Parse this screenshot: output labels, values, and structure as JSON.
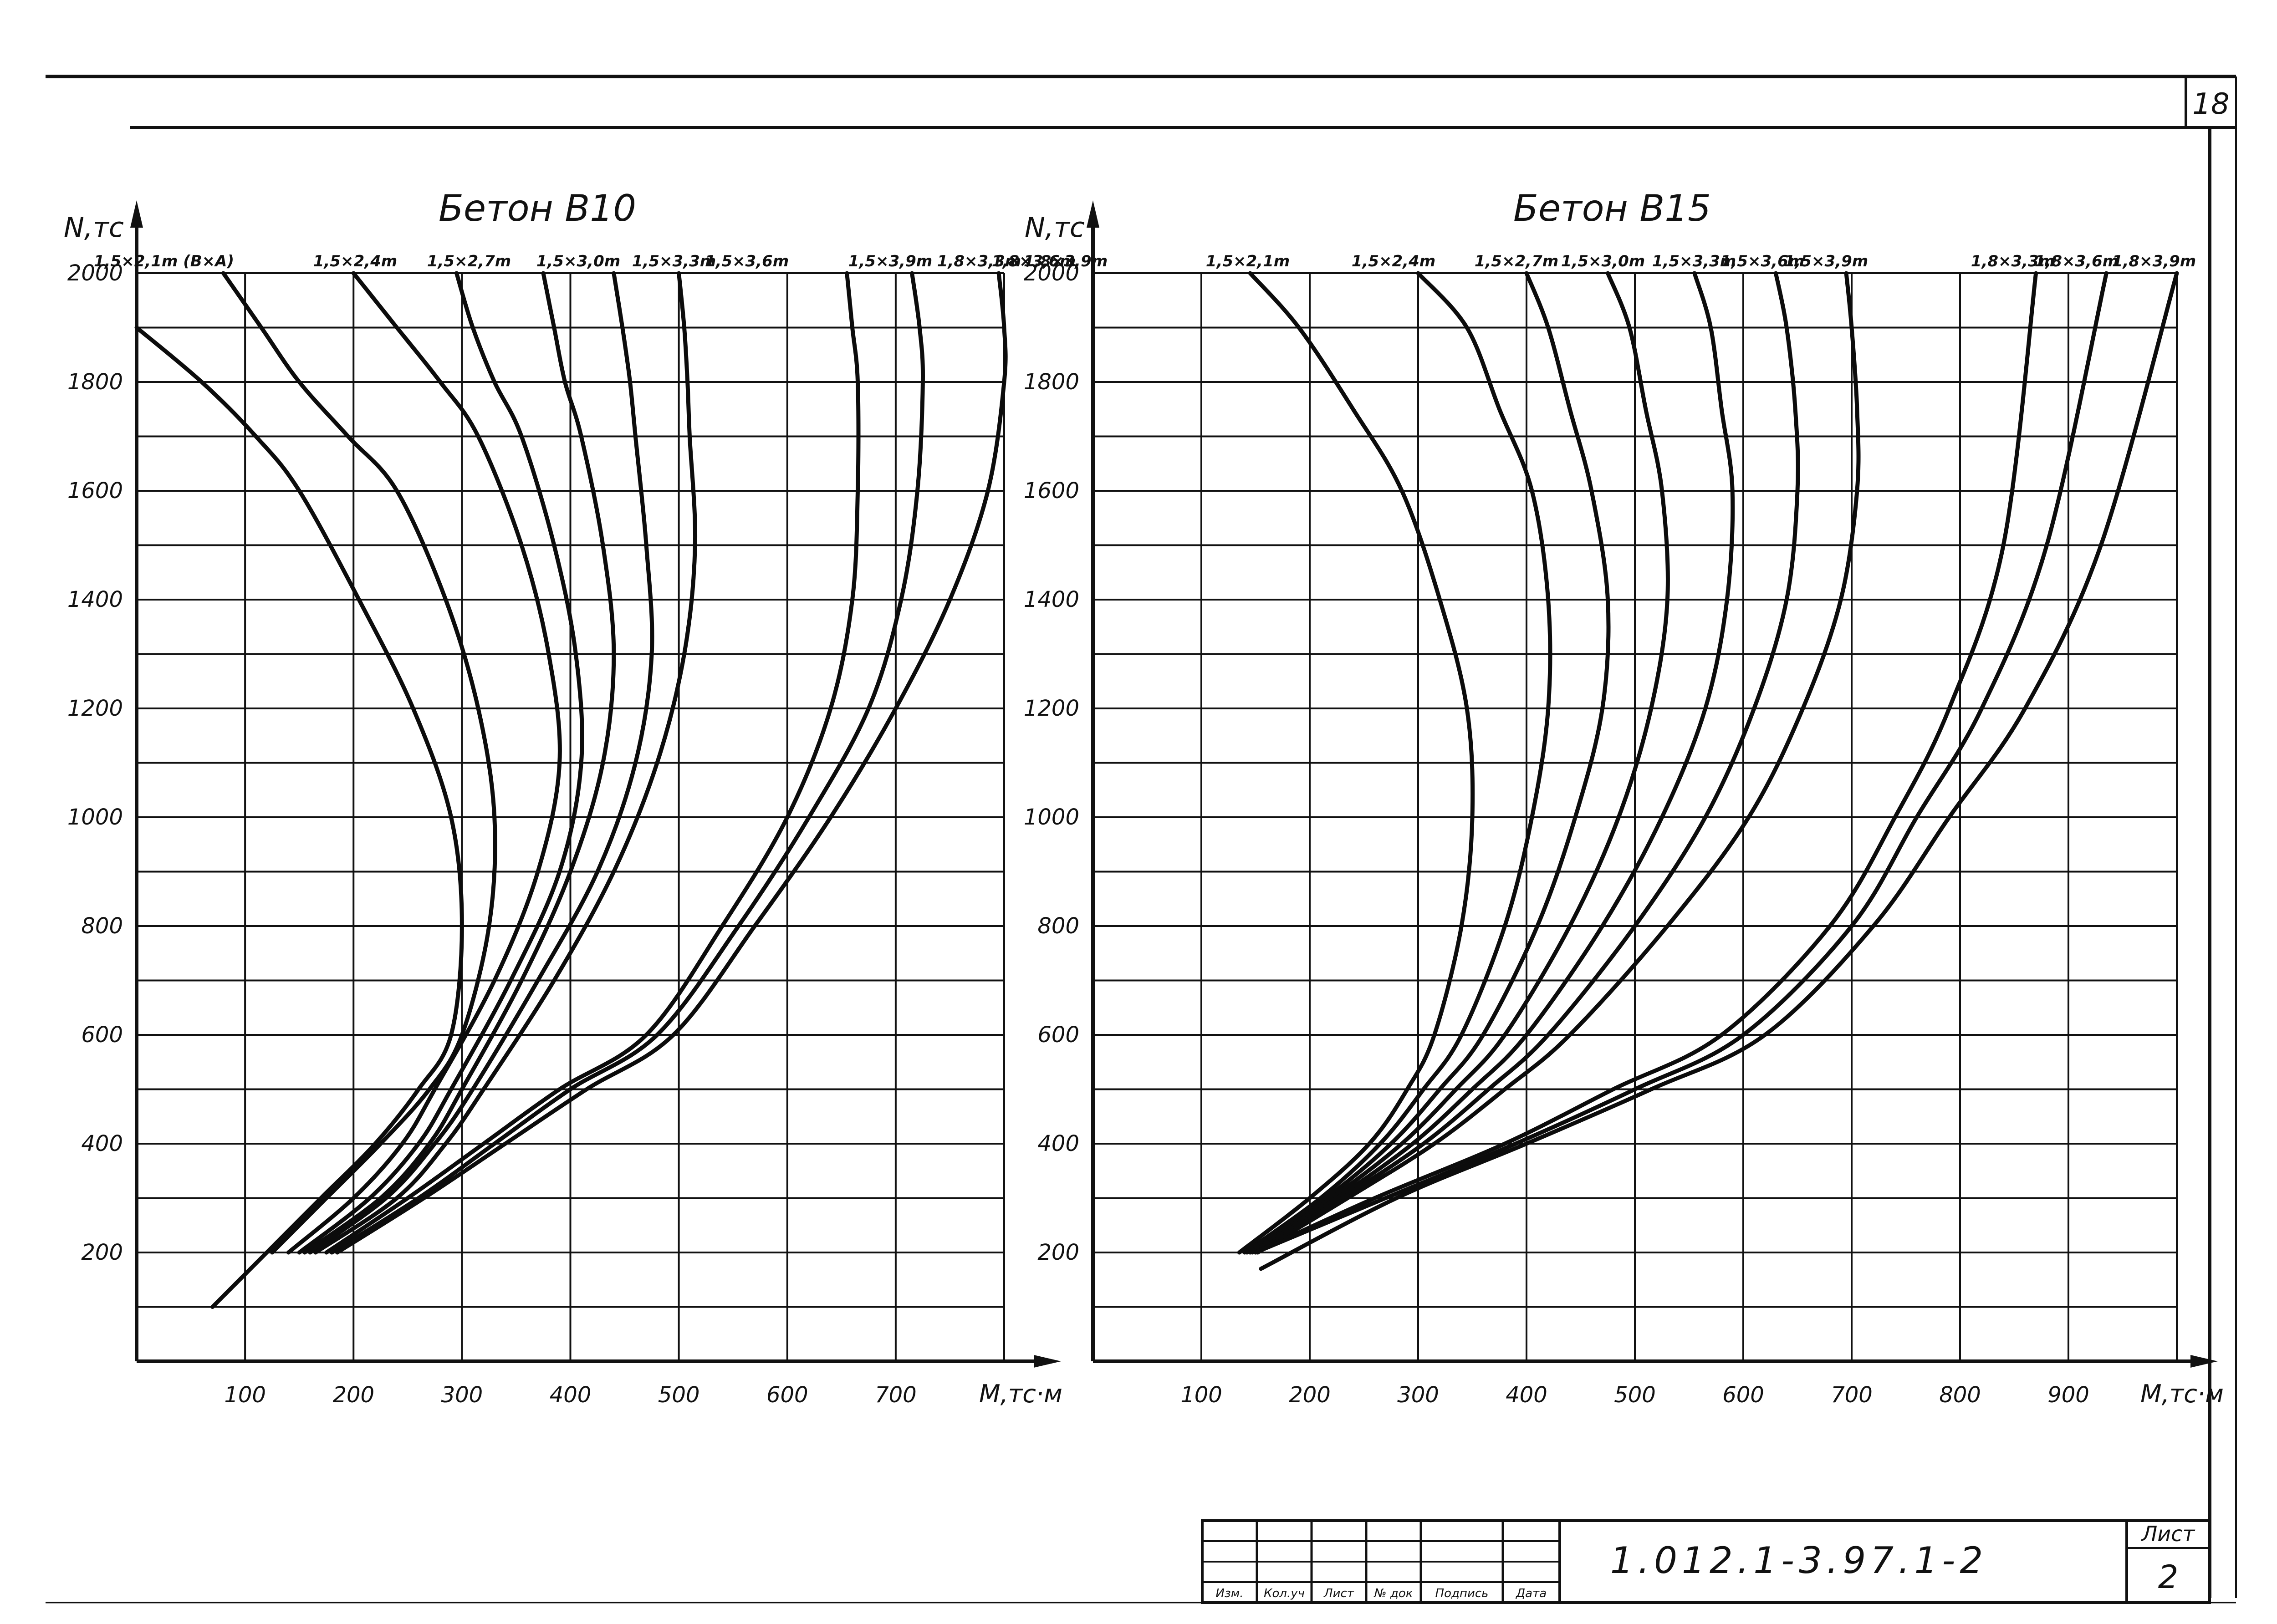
{
  "sheet_number": "18",
  "title_block": {
    "document_code": "1.012.1-3.97.1-2",
    "sheet_label": "Лист",
    "sheet_value": "2",
    "columns": [
      "Изм.",
      "Кол.уч",
      "Лист",
      "№ док",
      "Подпись",
      "Дата"
    ]
  },
  "chart_data": [
    {
      "type": "line",
      "title": "Бетон В10",
      "ylabel": "N,тс",
      "xlabel": "M,тс·м",
      "xlim": [
        0,
        800
      ],
      "ylim": [
        0,
        2000
      ],
      "x_ticks": [
        "100",
        "200",
        "300",
        "400",
        "500",
        "600",
        "700"
      ],
      "y_ticks": [
        "200",
        "400",
        "600",
        "800",
        "1000",
        "1200",
        "1400",
        "1600",
        "1800",
        "2000"
      ],
      "grid": true,
      "series": [
        {
          "name": "1,5×2,1m (B×A)",
          "x": [
            70,
            120,
            170,
            220,
            260,
            290,
            300,
            290,
            255,
            205,
            150,
            110,
            60,
            0
          ],
          "y": [
            100,
            200,
            300,
            400,
            500,
            600,
            800,
            1000,
            1200,
            1400,
            1600,
            1700,
            1800,
            1900
          ]
        },
        {
          "name": "1,5×2,4m",
          "x": [
            125,
            175,
            225,
            270,
            300,
            325,
            330,
            315,
            285,
            240,
            195,
            150,
            115,
            80
          ],
          "y": [
            200,
            300,
            400,
            500,
            600,
            800,
            1000,
            1200,
            1400,
            1600,
            1700,
            1800,
            1900,
            2000
          ]
        },
        {
          "name": "1,5×2,7m",
          "x": [
            140,
            200,
            245,
            275,
            330,
            370,
            390,
            380,
            355,
            315,
            280,
            240,
            200
          ],
          "y": [
            200,
            300,
            400,
            500,
            700,
            900,
            1100,
            1300,
            1500,
            1700,
            1800,
            1900,
            2000
          ]
        },
        {
          "name": "1,5×3,0m",
          "x": [
            150,
            215,
            260,
            290,
            345,
            390,
            410,
            405,
            385,
            355,
            330,
            310,
            295
          ],
          "y": [
            200,
            300,
            400,
            500,
            700,
            900,
            1100,
            1300,
            1500,
            1700,
            1800,
            1900,
            2000
          ]
        },
        {
          "name": "1,5×3,3m",
          "x": [
            155,
            225,
            270,
            300,
            355,
            400,
            430,
            440,
            430,
            410,
            395,
            385,
            375
          ],
          "y": [
            200,
            300,
            400,
            500,
            700,
            900,
            1100,
            1300,
            1500,
            1700,
            1800,
            1900,
            2000
          ]
        },
        {
          "name": "1,5×3,6m",
          "x": [
            160,
            230,
            275,
            310,
            370,
            425,
            460,
            475,
            470,
            460,
            455,
            448,
            440
          ],
          "y": [
            200,
            300,
            400,
            500,
            700,
            900,
            1100,
            1300,
            1500,
            1700,
            1800,
            1900,
            2000
          ]
        },
        {
          "name": "1,5×3,9m",
          "x": [
            165,
            240,
            285,
            320,
            385,
            440,
            480,
            505,
            515,
            510,
            508,
            505,
            500
          ],
          "y": [
            200,
            300,
            400,
            500,
            700,
            900,
            1100,
            1300,
            1500,
            1700,
            1800,
            1900,
            2000
          ]
        },
        {
          "name": "1,8×3,3m",
          "x": [
            175,
            250,
            320,
            390,
            470,
            540,
            600,
            640,
            660,
            665,
            665,
            660,
            655
          ],
          "y": [
            200,
            300,
            400,
            500,
            600,
            800,
            1000,
            1200,
            1400,
            1600,
            1800,
            1900,
            2000
          ]
        },
        {
          "name": "1,8×3,6m",
          "x": [
            180,
            260,
            330,
            400,
            480,
            555,
            620,
            675,
            705,
            720,
            725,
            722,
            715
          ],
          "y": [
            200,
            300,
            400,
            500,
            600,
            800,
            1000,
            1200,
            1400,
            1600,
            1800,
            1900,
            2000
          ]
        },
        {
          "name": "1,8×3,9m",
          "x": [
            185,
            265,
            340,
            415,
            495,
            570,
            640,
            700,
            750,
            785,
            800,
            800,
            795
          ],
          "y": [
            200,
            300,
            400,
            500,
            600,
            800,
            1000,
            1200,
            1400,
            1600,
            1800,
            1900,
            2000
          ]
        }
      ]
    },
    {
      "type": "line",
      "title": "Бетон В15",
      "ylabel": "N,тс",
      "xlabel": "M,тс·м",
      "xlim": [
        0,
        1000
      ],
      "ylim": [
        0,
        2000
      ],
      "x_ticks": [
        "100",
        "200",
        "300",
        "400",
        "500",
        "600",
        "700",
        "800",
        "900"
      ],
      "y_ticks": [
        "200",
        "400",
        "600",
        "800",
        "1000",
        "1200",
        "1400",
        "1600",
        "1800",
        "2000"
      ],
      "grid": true,
      "series": [
        {
          "name": "1,5×2,1m",
          "x": [
            135,
            200,
            255,
            290,
            315,
            340,
            350,
            345,
            320,
            285,
            240,
            190,
            145
          ],
          "y": [
            200,
            300,
            400,
            500,
            600,
            800,
            1000,
            1200,
            1400,
            1600,
            1750,
            1900,
            2000
          ]
        },
        {
          "name": "1,5×2,4m",
          "x": [
            140,
            210,
            265,
            305,
            340,
            380,
            405,
            420,
            420,
            405,
            375,
            345,
            300
          ],
          "y": [
            200,
            300,
            400,
            500,
            600,
            800,
            1000,
            1200,
            1400,
            1600,
            1750,
            1900,
            2000
          ]
        },
        {
          "name": "1,5×2,7m",
          "x": [
            142,
            215,
            275,
            320,
            360,
            410,
            445,
            470,
            475,
            460,
            440,
            420,
            400
          ],
          "y": [
            200,
            300,
            400,
            500,
            600,
            800,
            1000,
            1200,
            1400,
            1600,
            1750,
            1900,
            2000
          ]
        },
        {
          "name": "1,5×3,0m",
          "x": [
            145,
            220,
            285,
            335,
            380,
            440,
            485,
            515,
            530,
            525,
            510,
            495,
            475
          ],
          "y": [
            200,
            300,
            400,
            500,
            600,
            800,
            1000,
            1200,
            1400,
            1600,
            1750,
            1900,
            2000
          ]
        },
        {
          "name": "1,5×3,3m",
          "x": [
            147,
            225,
            295,
            350,
            400,
            470,
            525,
            565,
            585,
            590,
            580,
            570,
            555
          ],
          "y": [
            200,
            300,
            400,
            500,
            600,
            800,
            1000,
            1200,
            1400,
            1600,
            1750,
            1900,
            2000
          ]
        },
        {
          "name": "1,5×3,6m",
          "x": [
            150,
            230,
            305,
            365,
            420,
            500,
            565,
            610,
            640,
            650,
            648,
            640,
            630
          ],
          "y": [
            200,
            300,
            400,
            500,
            600,
            800,
            1000,
            1200,
            1400,
            1600,
            1750,
            1900,
            2000
          ]
        },
        {
          "name": "1,5×3,9m",
          "x": [
            152,
            235,
            315,
            380,
            440,
            530,
            605,
            655,
            690,
            705,
            705,
            700,
            695
          ],
          "y": [
            200,
            300,
            400,
            500,
            600,
            800,
            1000,
            1200,
            1400,
            1600,
            1750,
            1900,
            2000
          ]
        },
        {
          "name": "1,8×3,3m",
          "x": [
            150,
            260,
            380,
            480,
            580,
            680,
            740,
            790,
            840,
            870
          ],
          "y": [
            200,
            300,
            400,
            500,
            600,
            800,
            1000,
            1200,
            1500,
            2000
          ]
        },
        {
          "name": "1,8×3,6m",
          "x": [
            150,
            270,
            390,
            500,
            600,
            700,
            760,
            820,
            880,
            935
          ],
          "y": [
            200,
            300,
            400,
            500,
            600,
            800,
            1000,
            1200,
            1500,
            2000
          ]
        },
        {
          "name": "1,8×3,9m",
          "x": [
            155,
            280,
            400,
            515,
            620,
            720,
            790,
            860,
            930,
            1000
          ],
          "y": [
            170,
            300,
            400,
            500,
            600,
            800,
            1000,
            1200,
            1500,
            2000
          ]
        }
      ]
    }
  ]
}
